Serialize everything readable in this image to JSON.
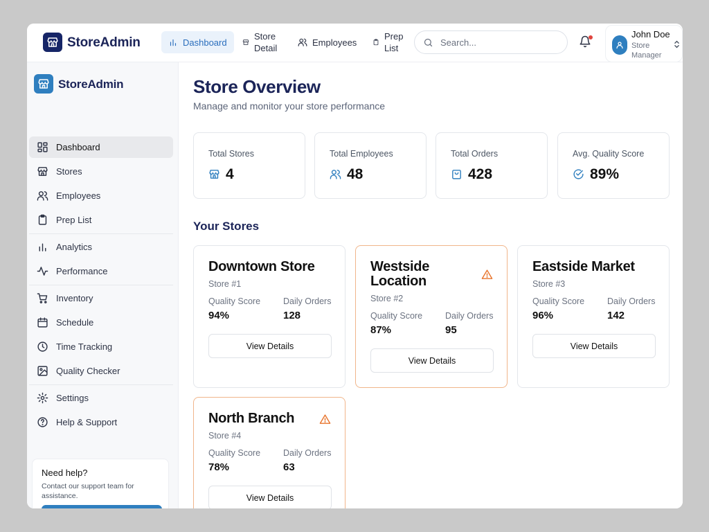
{
  "app": {
    "brand": "StoreAdmin"
  },
  "topnav": {
    "items": [
      {
        "label": "Dashboard",
        "icon": "bar-chart-icon",
        "active": true
      },
      {
        "label": "Store Detail",
        "icon": "store-icon"
      },
      {
        "label": "Employees",
        "icon": "users-icon"
      },
      {
        "label": "Prep List",
        "icon": "clipboard-icon"
      }
    ]
  },
  "search": {
    "placeholder": "Search...",
    "value": ""
  },
  "user": {
    "name": "John Doe",
    "role": "Store Manager"
  },
  "sidebar": {
    "brand": "StoreAdmin",
    "items": [
      {
        "label": "Dashboard",
        "icon": "grid-icon",
        "active": true
      },
      {
        "label": "Stores",
        "icon": "store-icon"
      },
      {
        "label": "Employees",
        "icon": "users-icon"
      },
      {
        "label": "Prep List",
        "icon": "clipboard-icon"
      },
      {
        "label": "Analytics",
        "icon": "bar-chart-icon"
      },
      {
        "label": "Performance",
        "icon": "activity-icon"
      },
      {
        "label": "Inventory",
        "icon": "cart-icon"
      },
      {
        "label": "Schedule",
        "icon": "calendar-icon"
      },
      {
        "label": "Time Tracking",
        "icon": "clock-icon"
      },
      {
        "label": "Quality Checker",
        "icon": "image-icon"
      },
      {
        "label": "Settings",
        "icon": "gear-icon"
      },
      {
        "label": "Help & Support",
        "icon": "help-circle-icon"
      }
    ],
    "help": {
      "title": "Need help?",
      "text": "Contact our support team for assistance."
    }
  },
  "main": {
    "title": "Store Overview",
    "subtitle": "Manage and monitor your store performance",
    "stats": [
      {
        "label": "Total Stores",
        "value": "4",
        "icon": "store-icon"
      },
      {
        "label": "Total Employees",
        "value": "48",
        "icon": "users-icon"
      },
      {
        "label": "Total Orders",
        "value": "428",
        "icon": "shopping-bag-icon"
      },
      {
        "label": "Avg. Quality Score",
        "value": "89%",
        "icon": "check-circle-icon"
      }
    ],
    "section_title": "Your Stores",
    "quality_label": "Quality Score",
    "orders_label": "Daily Orders",
    "button_label": "View Details",
    "stores": [
      {
        "name": "Downtown Store",
        "id": "Store #1",
        "quality": "94%",
        "orders": "128",
        "warning": false
      },
      {
        "name": "Westside Location",
        "id": "Store #2",
        "quality": "87%",
        "orders": "95",
        "warning": true
      },
      {
        "name": "Eastside Market",
        "id": "Store #3",
        "quality": "96%",
        "orders": "142",
        "warning": false
      },
      {
        "name": "North Branch",
        "id": "Store #4",
        "quality": "78%",
        "orders": "63",
        "warning": true
      }
    ]
  },
  "colors": {
    "brand_navy": "#162567",
    "accent_blue": "#2f7fbf",
    "warning_orange": "#e8742c",
    "notification_red": "#e0453f"
  }
}
